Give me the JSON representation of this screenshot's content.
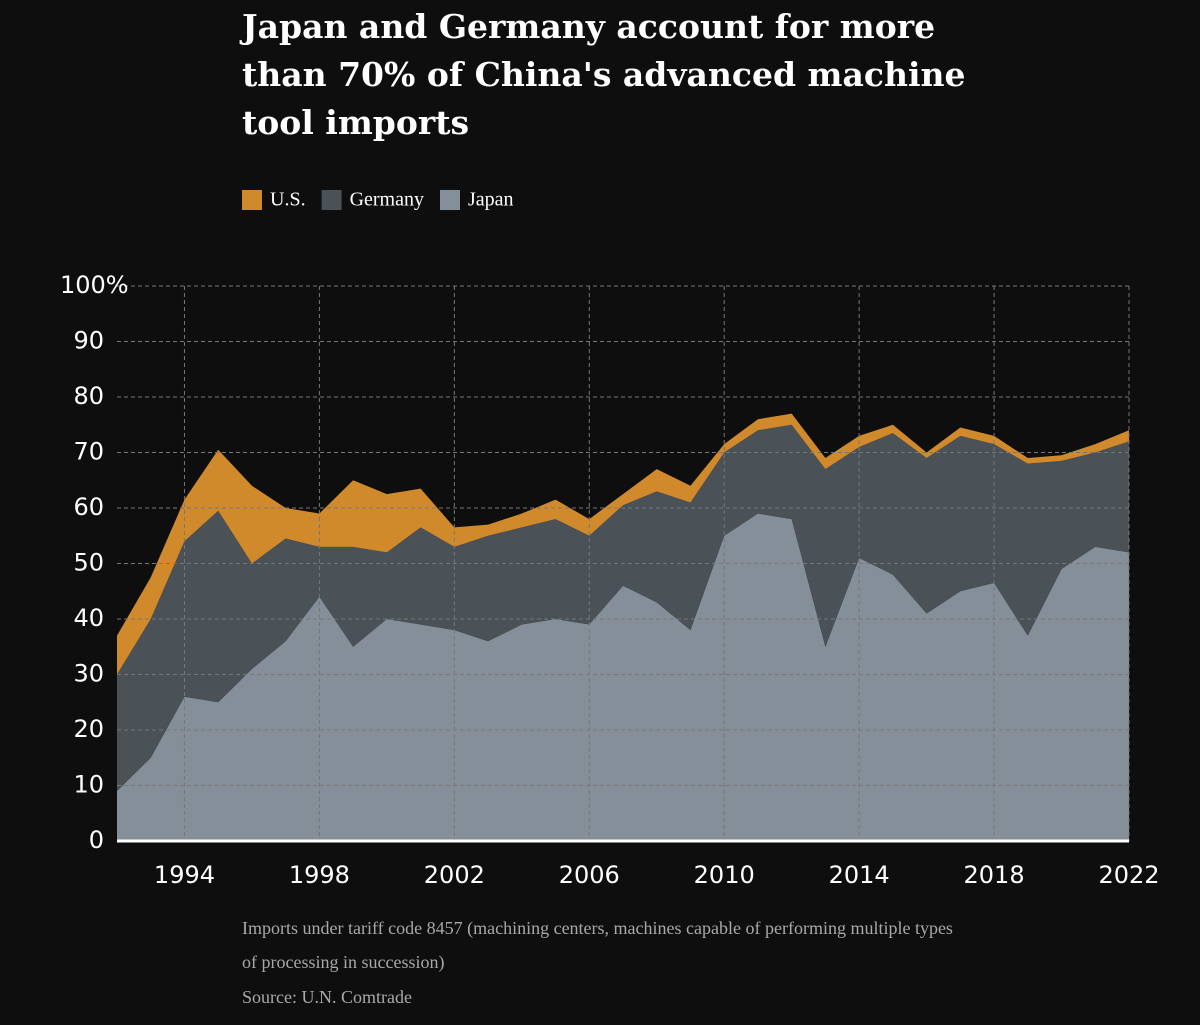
{
  "chart_data": {
    "type": "stacked_area",
    "title": "Japan and Germany account for more than 70% of China's advanced machine tool imports",
    "notes": [
      "Imports under tariff code 8457 (machining centers, machines capable of performing multiple types of processing in succession)",
      "Source: U.N. Comtrade"
    ],
    "x": [
      1992,
      1993,
      1994,
      1995,
      1996,
      1997,
      1998,
      1999,
      2000,
      2001,
      2002,
      2003,
      2004,
      2005,
      2006,
      2007,
      2008,
      2009,
      2010,
      2011,
      2012,
      2013,
      2014,
      2015,
      2016,
      2017,
      2018,
      2019,
      2020,
      2021,
      2022
    ],
    "series": [
      {
        "name": "U.S.",
        "color": "#d08a2c",
        "values": [
          7,
          7.5,
          7.5,
          11,
          14,
          5.5,
          6,
          12,
          10.5,
          7,
          3.5,
          2,
          2.5,
          3.5,
          3,
          2,
          4,
          3,
          1.5,
          2,
          2,
          2,
          2,
          1.5,
          1,
          1.5,
          1.5,
          1,
          1,
          1.5,
          2
        ]
      },
      {
        "name": "Germany",
        "color": "#4a5157",
        "values": [
          21,
          25,
          28,
          34.5,
          19,
          18.5,
          9,
          18,
          12,
          17.5,
          15,
          19,
          17.5,
          18,
          16,
          14.5,
          20,
          23,
          15,
          15,
          17,
          32,
          20,
          25.5,
          28,
          28,
          25,
          31,
          19.5,
          17,
          20
        ]
      },
      {
        "name": "Japan",
        "color": "#858f99",
        "values": [
          9,
          15,
          26,
          25,
          31,
          36,
          44,
          35,
          40,
          39,
          38,
          36,
          39,
          40,
          39,
          46,
          43,
          38,
          55,
          59,
          58,
          35,
          51,
          48,
          41,
          45,
          46.5,
          37,
          49,
          53,
          52
        ]
      }
    ],
    "xlim": [
      1992,
      2022
    ],
    "xticks": [
      1994,
      1998,
      2002,
      2006,
      2010,
      2014,
      2018,
      2022
    ],
    "ylim": [
      0,
      100
    ],
    "yticks": [
      0,
      10,
      20,
      30,
      40,
      50,
      60,
      70,
      80,
      90,
      {
        "value": 100,
        "label": "100%"
      }
    ],
    "grid": true
  }
}
